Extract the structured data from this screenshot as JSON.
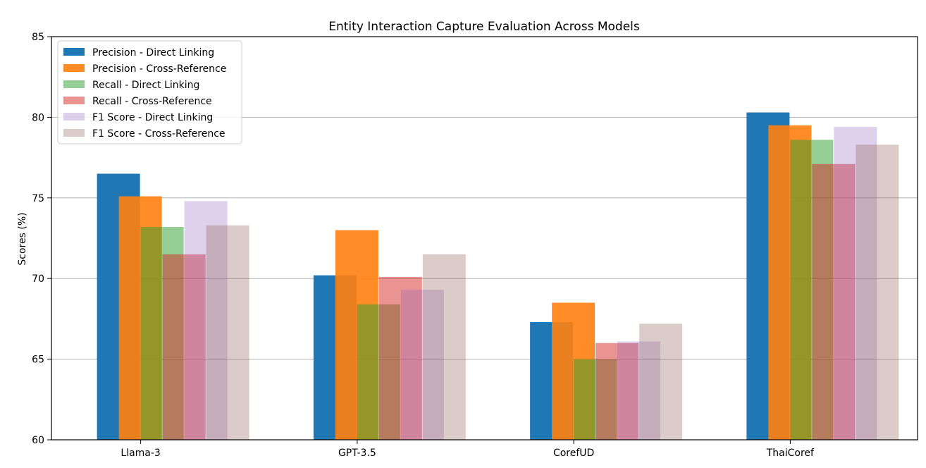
{
  "chart_data": {
    "type": "bar",
    "title": "Entity Interaction Capture Evaluation Across Models",
    "xlabel": "",
    "ylabel": "Scores (%)",
    "ylim": [
      60,
      85
    ],
    "yticks": [
      "60",
      "65",
      "70",
      "75",
      "80",
      "85"
    ],
    "grid": "y-axis",
    "legend_position": "top-left",
    "categories": [
      "Llama-3",
      "GPT-3.5",
      "CorefUD",
      "ThaiCoref"
    ],
    "series": [
      {
        "name": "Precision - Direct Linking",
        "color": "#1f77b4",
        "opacity": 1.0,
        "values": [
          76.5,
          70.2,
          67.3,
          80.3
        ]
      },
      {
        "name": "Precision - Cross-Reference",
        "color": "#ff7f0e",
        "opacity": 0.9,
        "values": [
          75.1,
          73.0,
          68.5,
          79.5
        ]
      },
      {
        "name": "Recall - Direct Linking",
        "color": "#2ca02c",
        "opacity": 0.5,
        "values": [
          73.2,
          68.4,
          65.0,
          78.6
        ]
      },
      {
        "name": "Recall - Cross-Reference",
        "color": "#d62728",
        "opacity": 0.5,
        "values": [
          71.5,
          70.1,
          66.0,
          77.1
        ]
      },
      {
        "name": "F1 Score - Direct Linking",
        "color": "#9467bd",
        "opacity": 0.3,
        "values": [
          74.8,
          69.3,
          66.1,
          79.4
        ]
      },
      {
        "name": "F1 Score - Cross-Reference",
        "color": "#8c564b",
        "opacity": 0.3,
        "values": [
          73.3,
          71.5,
          67.2,
          78.3
        ]
      }
    ]
  }
}
